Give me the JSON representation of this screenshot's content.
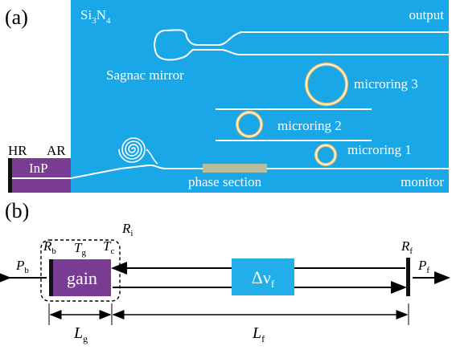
{
  "panel_a": {
    "label": "(a)",
    "chip_material": {
      "base": "Si",
      "sub1": "3",
      "mid": "N",
      "sub2": "4"
    },
    "output_label": "output",
    "sagnac_label": "Sagnac mirror",
    "microring3_label": "microring 3",
    "microring2_label": "microring 2",
    "microring1_label": "microring 1",
    "phase_section_label": "phase section",
    "monitor_label": "monitor",
    "hr_label": "HR",
    "ar_label": "AR",
    "inp_label": "InP"
  },
  "panel_b": {
    "label": "(b)",
    "gain_label": "gain",
    "ri": {
      "base": "R",
      "sub": "i"
    },
    "rb": {
      "base": "R",
      "sub": "b"
    },
    "tg": {
      "base": "T",
      "sub": "g"
    },
    "tc": {
      "base": "T",
      "sub": "c"
    },
    "rf": {
      "base": "R",
      "sub": "f"
    },
    "pb": {
      "base": "P",
      "sub": "b"
    },
    "pf": {
      "base": "P",
      "sub": "f"
    },
    "delta_nu": {
      "base": "Δν",
      "sub": "f"
    },
    "lg": {
      "base": "L",
      "sub": "g"
    },
    "lf": {
      "base": "L",
      "sub": "f"
    }
  },
  "colors": {
    "chip_blue": "#1aa7e8",
    "inp_purple": "#7a3b93",
    "waveguide": "#ffffff",
    "ring_glow": "#f4c56a",
    "phase_section": "#b9bc9c",
    "box_blue": "#22aee8"
  }
}
